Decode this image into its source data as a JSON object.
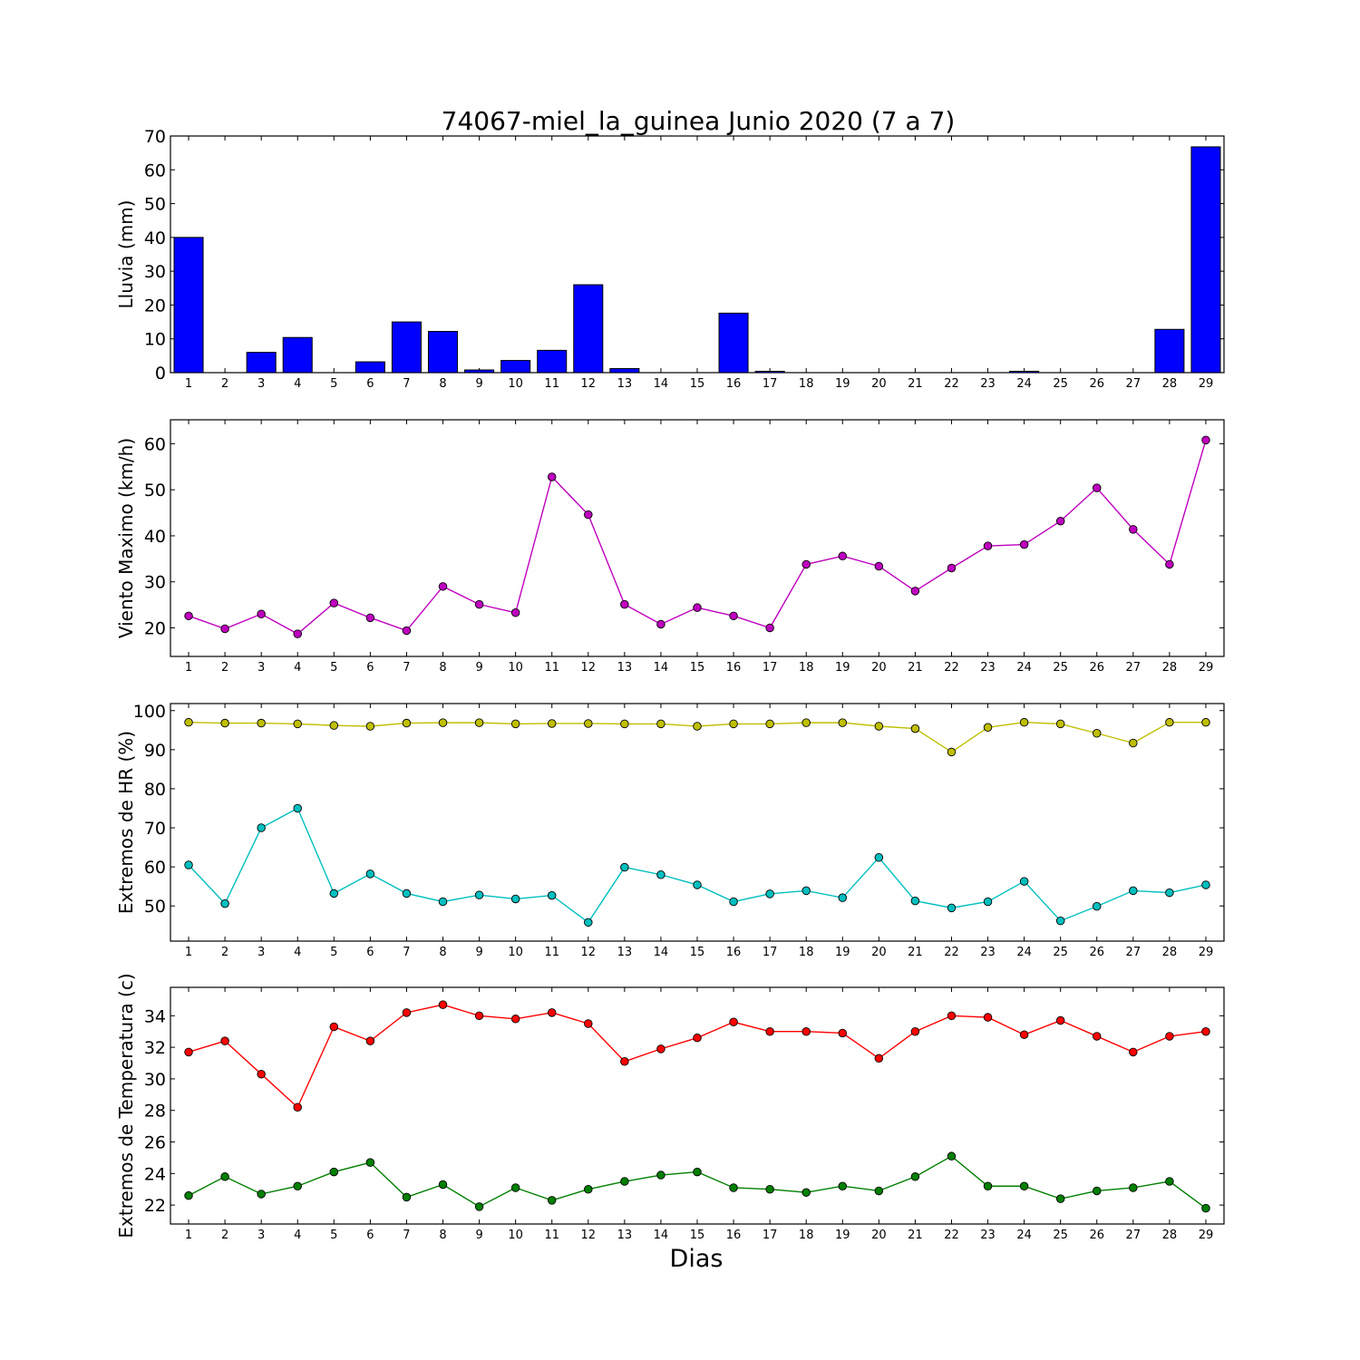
{
  "figure": {
    "title": "74067-miel_la_guinea Junio 2020  (7 a 7)",
    "xlabel": "Dias"
  },
  "chart_data": [
    {
      "type": "bar",
      "ylabel": "Lluvia (mm)",
      "categories": [
        "1",
        "2",
        "3",
        "4",
        "5",
        "6",
        "7",
        "8",
        "9",
        "10",
        "11",
        "12",
        "13",
        "14",
        "15",
        "16",
        "17",
        "18",
        "19",
        "20",
        "21",
        "22",
        "23",
        "24",
        "25",
        "26",
        "27",
        "28",
        "29"
      ],
      "values": [
        40.0,
        0,
        6.0,
        10.4,
        0,
        3.2,
        15.0,
        12.2,
        0.8,
        3.6,
        6.6,
        26.0,
        1.2,
        0,
        0,
        17.6,
        0.4,
        0,
        0,
        0,
        0,
        0,
        0,
        0.4,
        0,
        0,
        0,
        12.8,
        66.8
      ],
      "ylim": [
        0,
        70
      ],
      "yticks": [
        0,
        10,
        20,
        30,
        40,
        50,
        60,
        70
      ],
      "color": "#0000ff"
    },
    {
      "type": "line",
      "ylabel": "Viento Maximo (km/h)",
      "categories": [
        "1",
        "2",
        "3",
        "4",
        "5",
        "6",
        "7",
        "8",
        "9",
        "10",
        "11",
        "12",
        "13",
        "14",
        "15",
        "16",
        "17",
        "18",
        "19",
        "20",
        "21",
        "22",
        "23",
        "24",
        "25",
        "26",
        "27",
        "28",
        "29"
      ],
      "series": [
        {
          "color": "#bf00bf",
          "values": [
            22.6,
            19.8,
            23.0,
            18.7,
            25.4,
            22.2,
            19.4,
            29.0,
            25.1,
            23.3,
            52.8,
            44.6,
            25.1,
            20.8,
            24.4,
            22.6,
            20.0,
            33.8,
            35.6,
            33.4,
            28.0,
            33.0,
            37.8,
            38.1,
            43.2,
            50.4,
            41.4,
            33.8,
            60.8
          ]
        }
      ],
      "ylim": [
        13.8,
        65.2
      ],
      "yticks": [
        20,
        30,
        40,
        50,
        60
      ]
    },
    {
      "type": "line",
      "ylabel": "Extremos de HR (%)",
      "categories": [
        "1",
        "2",
        "3",
        "4",
        "5",
        "6",
        "7",
        "8",
        "9",
        "10",
        "11",
        "12",
        "13",
        "14",
        "15",
        "16",
        "17",
        "18",
        "19",
        "20",
        "21",
        "22",
        "23",
        "24",
        "25",
        "26",
        "27",
        "28",
        "29"
      ],
      "series": [
        {
          "color": "#bfbf00",
          "values": [
            97,
            96.8,
            96.8,
            96.6,
            96.2,
            96,
            96.8,
            96.9,
            96.9,
            96.6,
            96.7,
            96.7,
            96.6,
            96.6,
            96,
            96.6,
            96.6,
            96.9,
            96.9,
            96,
            95.4,
            89.4,
            95.7,
            97,
            96.6,
            94.2,
            91.7,
            97,
            97
          ]
        },
        {
          "color": "#00bfbf",
          "values": [
            60.5,
            50.6,
            70,
            75,
            53.2,
            58.2,
            53.2,
            51.1,
            52.8,
            51.8,
            52.7,
            45.8,
            59.9,
            58,
            55.4,
            51.1,
            53.1,
            53.9,
            52.1,
            62.4,
            51.3,
            49.5,
            51.1,
            56.3,
            46.2,
            49.9,
            53.9,
            53.4,
            55.4
          ]
        }
      ],
      "ylim": [
        41,
        101.8
      ],
      "yticks": [
        50,
        60,
        70,
        80,
        90,
        100
      ]
    },
    {
      "type": "line",
      "ylabel": "Extremos de Temperatura (c)",
      "categories": [
        "1",
        "2",
        "3",
        "4",
        "5",
        "6",
        "7",
        "8",
        "9",
        "10",
        "11",
        "12",
        "13",
        "14",
        "15",
        "16",
        "17",
        "18",
        "19",
        "20",
        "21",
        "22",
        "23",
        "24",
        "25",
        "26",
        "27",
        "28",
        "29"
      ],
      "series": [
        {
          "color": "#ff0000",
          "values": [
            31.7,
            32.4,
            30.3,
            28.2,
            33.3,
            32.4,
            34.2,
            34.7,
            34.0,
            33.8,
            34.2,
            33.5,
            31.1,
            31.9,
            32.6,
            33.6,
            33.0,
            33.0,
            32.9,
            31.3,
            33.0,
            34.0,
            33.9,
            32.8,
            33.7,
            32.7,
            31.7,
            32.7,
            33.0
          ]
        },
        {
          "color": "#008000",
          "values": [
            22.6,
            23.8,
            22.7,
            23.2,
            24.1,
            24.7,
            22.5,
            23.3,
            21.9,
            23.1,
            22.3,
            23.0,
            23.5,
            23.9,
            24.1,
            23.1,
            23.0,
            22.8,
            23.2,
            22.9,
            23.8,
            25.1,
            23.2,
            23.2,
            22.4,
            22.9,
            23.1,
            23.5,
            21.8
          ]
        }
      ],
      "ylim": [
        20.8,
        35.8
      ],
      "yticks": [
        22,
        24,
        26,
        28,
        30,
        32,
        34
      ]
    }
  ]
}
